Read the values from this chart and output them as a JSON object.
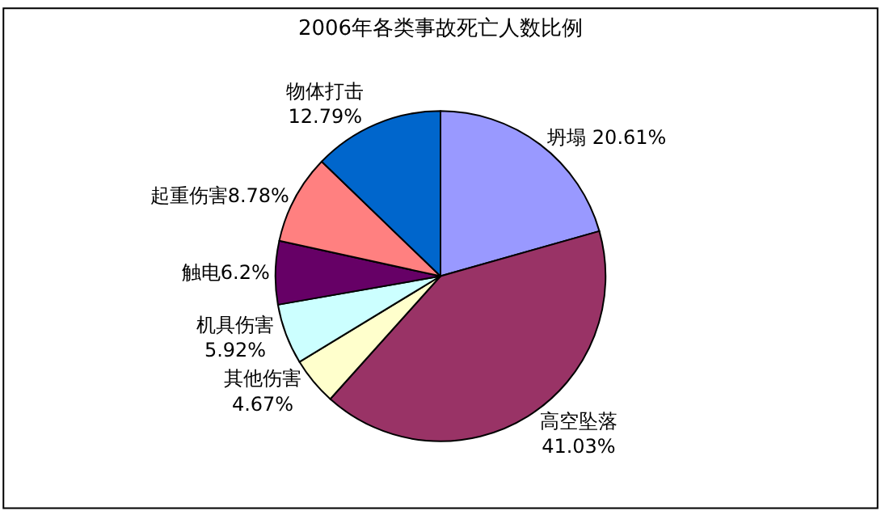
{
  "chart_data": {
    "type": "pie",
    "title": "2006年各类事故死亡人数比例",
    "categories": [
      "坍塌",
      "高空坠落",
      "其他伤害",
      "机具伤害",
      "触电",
      "起重伤害",
      "物体打击"
    ],
    "values": [
      20.61,
      41.03,
      4.67,
      5.92,
      6.2,
      8.78,
      12.79
    ],
    "value_labels": [
      "20.61%",
      "41.03%",
      "4.67%",
      "5.92%",
      "6.2%",
      "8.78%",
      "12.79%"
    ],
    "colors": [
      "#9999ff",
      "#993366",
      "#ffffcc",
      "#ccffff",
      "#660066",
      "#ff8080",
      "#0066cc"
    ],
    "legend": false
  }
}
